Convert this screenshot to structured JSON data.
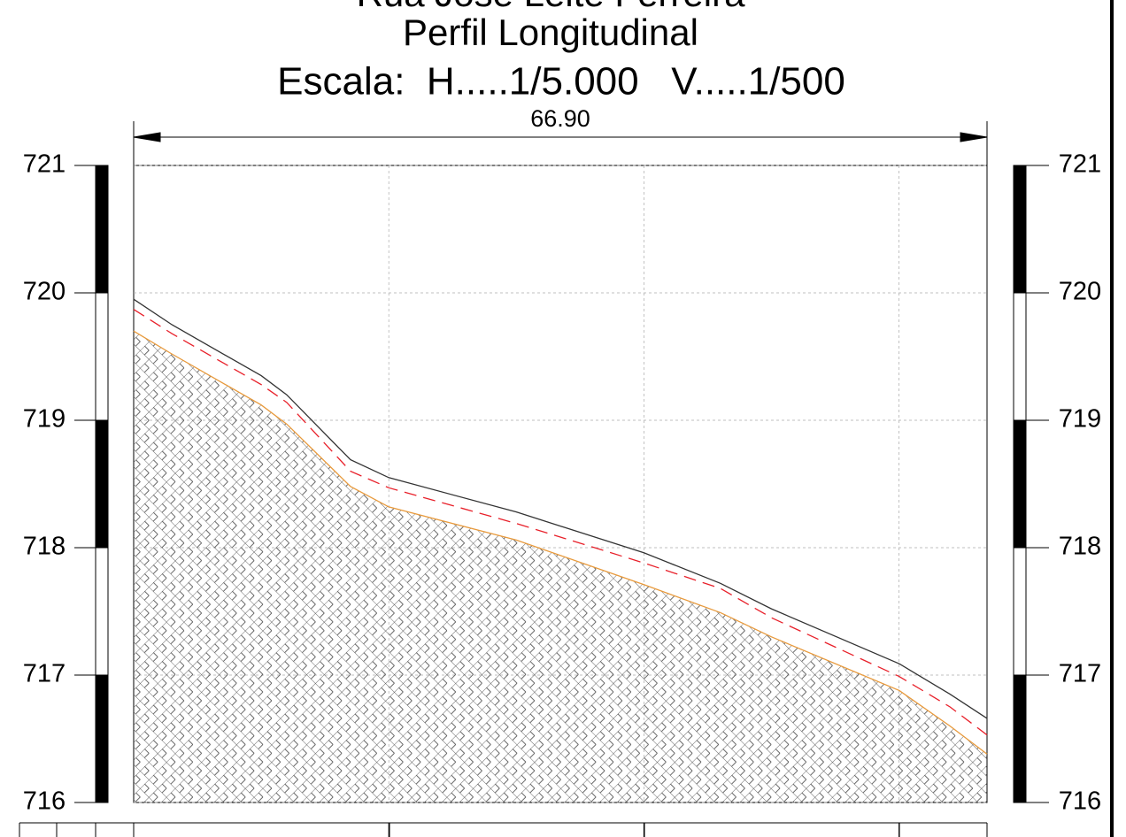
{
  "chart_data": {
    "type": "line",
    "title": "Rua José Leite Ferreira",
    "subtitle": [
      "Perfil Longitudinal",
      "Escala:  H.....1/5.000   V.....1/500"
    ],
    "annotations": [
      "66.90"
    ],
    "x": [
      0,
      3,
      10,
      12,
      17,
      20,
      30,
      40,
      46,
      50,
      60,
      64,
      66.9
    ],
    "series": [
      {
        "color": "#333333",
        "style": "solid",
        "values": [
          719.95,
          719.75,
          719.35,
          719.2,
          718.69,
          718.55,
          718.28,
          717.96,
          717.72,
          717.52,
          717.09,
          716.85,
          716.66
        ]
      },
      {
        "color": "#e8202a",
        "style": "dashed",
        "values": [
          719.87,
          719.68,
          719.28,
          719.14,
          718.6,
          718.47,
          718.19,
          717.88,
          717.68,
          717.45,
          716.99,
          716.75,
          716.53
        ]
      },
      {
        "color": "#e89a3c",
        "style": "solid",
        "hatch": true,
        "values": [
          719.7,
          719.52,
          719.12,
          718.97,
          718.48,
          718.32,
          718.06,
          717.71,
          717.49,
          717.3,
          716.88,
          716.6,
          716.38
        ]
      }
    ],
    "xlim": [
      0,
      66.9
    ],
    "xticks": [
      20,
      40,
      60
    ],
    "ylim": [
      716,
      721
    ],
    "yticks": [
      716,
      717,
      718,
      719,
      720,
      721
    ],
    "grid": true
  }
}
